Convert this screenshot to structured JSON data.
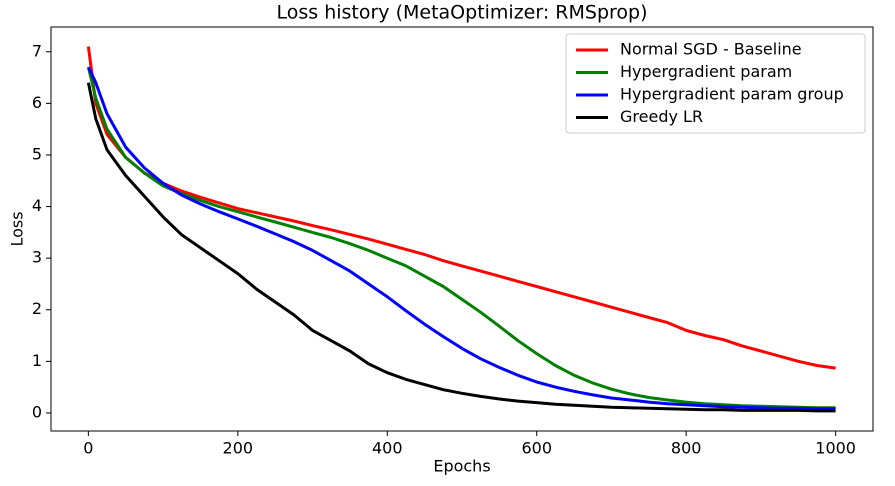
{
  "chart_data": {
    "type": "line",
    "title": "Loss history (MetaOptimizer: RMSprop)",
    "x_label": "Epochs",
    "y_label": "Loss",
    "x": [
      0,
      10,
      25,
      50,
      75,
      100,
      125,
      150,
      175,
      200,
      225,
      250,
      275,
      300,
      325,
      350,
      375,
      400,
      425,
      450,
      475,
      500,
      525,
      550,
      575,
      600,
      625,
      650,
      675,
      700,
      725,
      750,
      775,
      800,
      825,
      850,
      875,
      900,
      925,
      950,
      975,
      1000
    ],
    "series": [
      {
        "name": "Normal SGD - Baseline",
        "color": "#ff0000",
        "values": [
          7.1,
          6.0,
          5.4,
          4.95,
          4.65,
          4.45,
          4.3,
          4.18,
          4.07,
          3.96,
          3.88,
          3.8,
          3.72,
          3.63,
          3.55,
          3.46,
          3.37,
          3.27,
          3.17,
          3.07,
          2.95,
          2.85,
          2.75,
          2.65,
          2.55,
          2.45,
          2.35,
          2.25,
          2.15,
          2.05,
          1.95,
          1.85,
          1.75,
          1.6,
          1.5,
          1.42,
          1.3,
          1.2,
          1.1,
          1.0,
          0.92,
          0.87
        ]
      },
      {
        "name": "Hypergradient param",
        "color": "#008000",
        "values": [
          6.7,
          6.1,
          5.5,
          4.95,
          4.65,
          4.4,
          4.25,
          4.12,
          4.0,
          3.9,
          3.8,
          3.7,
          3.6,
          3.5,
          3.4,
          3.28,
          3.15,
          3.0,
          2.85,
          2.65,
          2.45,
          2.2,
          1.95,
          1.68,
          1.4,
          1.15,
          0.92,
          0.73,
          0.58,
          0.46,
          0.37,
          0.3,
          0.25,
          0.21,
          0.18,
          0.16,
          0.14,
          0.13,
          0.12,
          0.11,
          0.1,
          0.1
        ]
      },
      {
        "name": "Hypergradient param group",
        "color": "#0000ff",
        "values": [
          6.7,
          6.4,
          5.8,
          5.15,
          4.75,
          4.45,
          4.22,
          4.05,
          3.9,
          3.76,
          3.62,
          3.47,
          3.32,
          3.15,
          2.95,
          2.75,
          2.5,
          2.25,
          1.98,
          1.72,
          1.48,
          1.25,
          1.05,
          0.88,
          0.73,
          0.6,
          0.5,
          0.42,
          0.35,
          0.29,
          0.25,
          0.21,
          0.18,
          0.16,
          0.14,
          0.12,
          0.11,
          0.1,
          0.09,
          0.09,
          0.08,
          0.08
        ]
      },
      {
        "name": "Greedy LR",
        "color": "#000000",
        "values": [
          6.4,
          5.7,
          5.1,
          4.6,
          4.2,
          3.8,
          3.45,
          3.2,
          2.95,
          2.7,
          2.4,
          2.15,
          1.9,
          1.6,
          1.4,
          1.2,
          0.95,
          0.78,
          0.65,
          0.55,
          0.45,
          0.38,
          0.32,
          0.27,
          0.23,
          0.2,
          0.17,
          0.15,
          0.13,
          0.11,
          0.1,
          0.09,
          0.08,
          0.07,
          0.06,
          0.06,
          0.05,
          0.05,
          0.05,
          0.05,
          0.04,
          0.04
        ]
      }
    ],
    "xlim": [
      -50,
      1050
    ],
    "ylim": [
      -0.35,
      7.48
    ],
    "xticks": [
      0,
      200,
      400,
      600,
      800,
      1000
    ],
    "yticks": [
      0,
      1,
      2,
      3,
      4,
      5,
      6,
      7
    ],
    "legend": "upper right"
  }
}
